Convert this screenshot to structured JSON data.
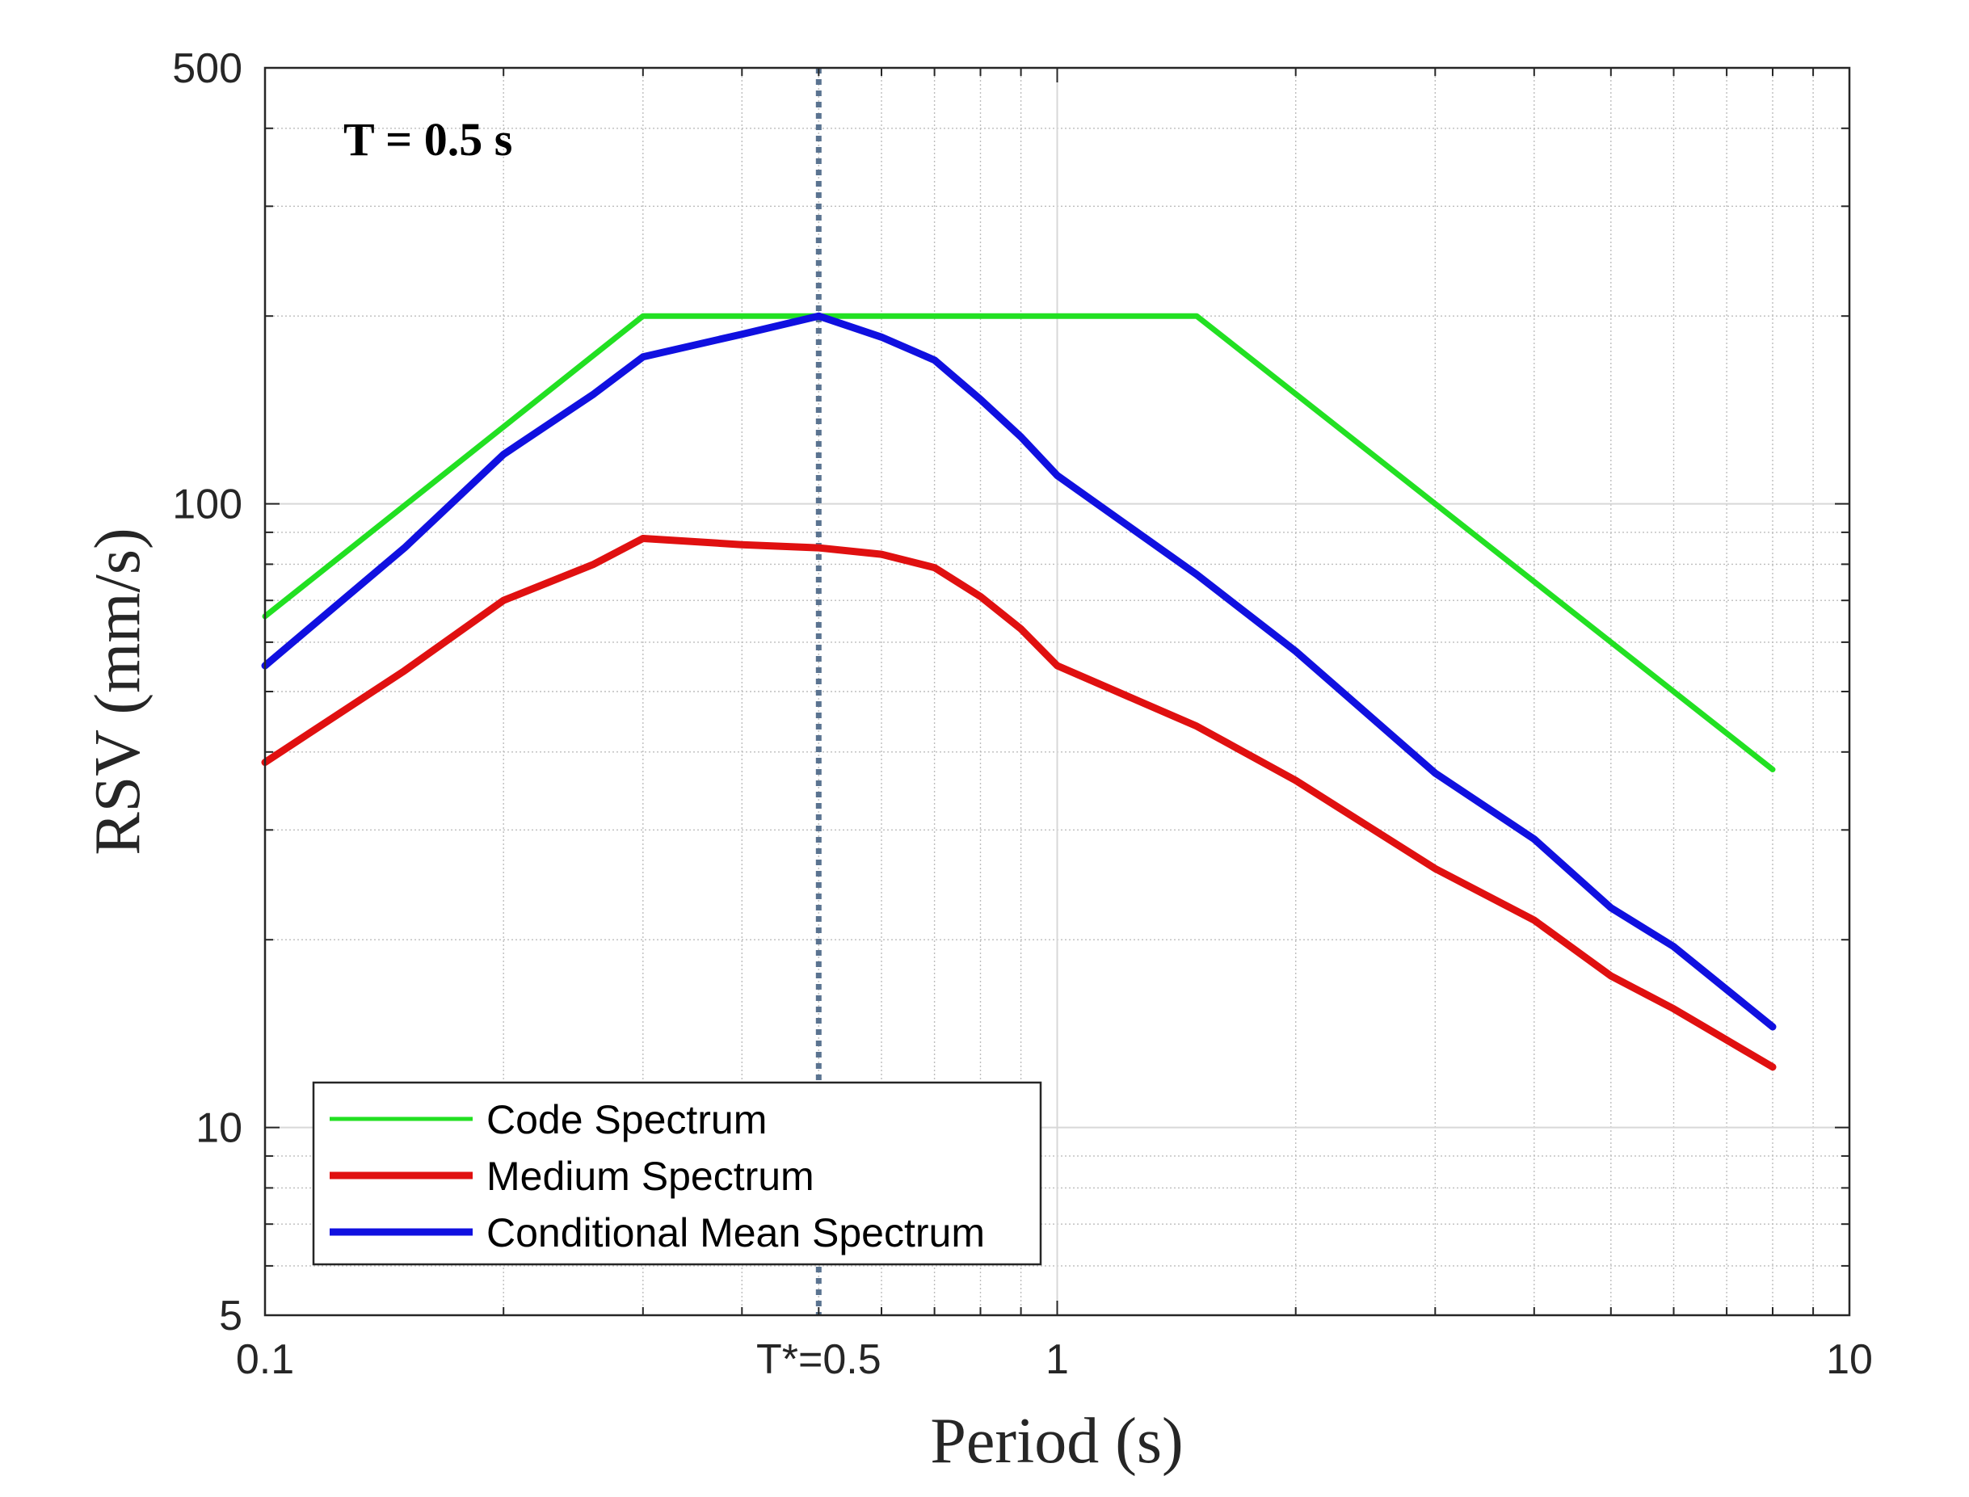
{
  "chart_data": {
    "type": "line",
    "title": "",
    "annotation": "T = 0.5 s",
    "xlabel": "Period (s)",
    "ylabel": "RSV (mm/s)",
    "xscale": "log",
    "yscale": "log",
    "xlim": [
      0.1,
      10
    ],
    "ylim": [
      5,
      500
    ],
    "grid": true,
    "x_ticks": [
      {
        "value": 0.1,
        "label": "0.1"
      },
      {
        "value": 0.5,
        "label": "T*=0.5"
      },
      {
        "value": 1,
        "label": "1"
      },
      {
        "value": 10,
        "label": "10"
      }
    ],
    "y_ticks": [
      {
        "value": 5,
        "label": "5"
      },
      {
        "value": 10,
        "label": "10"
      },
      {
        "value": 100,
        "label": "100"
      },
      {
        "value": 500,
        "label": "500"
      }
    ],
    "reference_line": {
      "x": 0.5,
      "style": "dotted",
      "color": "#5a7390"
    },
    "legend_position": "bottom-left",
    "series": [
      {
        "name": "Code Spectrum",
        "color": "#22e022",
        "x": [
          0.1,
          0.3,
          1.5,
          3,
          8
        ],
        "y": [
          66,
          200,
          200,
          100,
          37.5
        ]
      },
      {
        "name": "Medium Spectrum",
        "color": "#e01010",
        "x": [
          0.1,
          0.15,
          0.2,
          0.26,
          0.3,
          0.4,
          0.5,
          0.6,
          0.7,
          0.8,
          0.9,
          1.0,
          1.5,
          2.0,
          3.0,
          4.0,
          5.0,
          6.0,
          8.0
        ],
        "y": [
          38.5,
          54,
          70,
          80,
          88,
          86,
          85,
          83,
          79,
          71,
          63,
          55,
          44,
          36,
          26,
          21.5,
          17.5,
          15.5,
          12.5
        ]
      },
      {
        "name": "Conditional Mean Spectrum",
        "color": "#1010e0",
        "x": [
          0.1,
          0.15,
          0.2,
          0.26,
          0.3,
          0.4,
          0.5,
          0.6,
          0.7,
          0.8,
          0.9,
          1.0,
          1.5,
          2.0,
          3.0,
          4.0,
          5.0,
          6.0,
          8.0
        ],
        "y": [
          55,
          85,
          120,
          150,
          172,
          187,
          200,
          185,
          170,
          147,
          128,
          111,
          77,
          58,
          37,
          29,
          22.5,
          19.5,
          14.5
        ]
      }
    ]
  }
}
